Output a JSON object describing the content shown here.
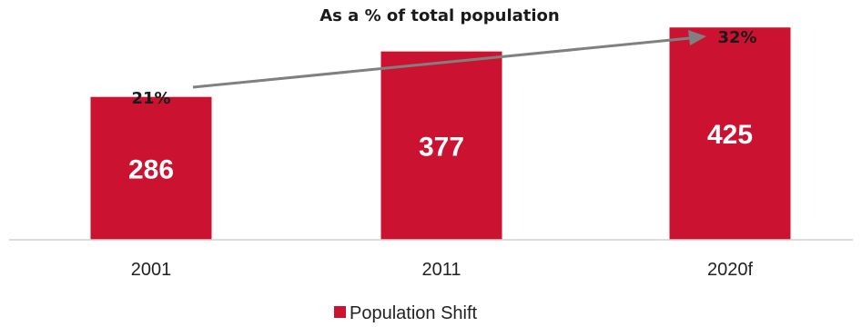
{
  "chart_data": {
    "type": "bar",
    "categories": [
      "2001",
      "2011",
      "2020f"
    ],
    "series": [
      {
        "name": "Population Shift",
        "values": [
          286,
          377,
          425
        ],
        "color": "#cc1231"
      }
    ],
    "ylim": [
      0,
      480
    ],
    "annotation": {
      "text": "As a % of total population",
      "start_label": "21%",
      "end_label": "32%",
      "arrow_color": "#808080"
    },
    "legend": {
      "placement": "bottom-center"
    },
    "grid": false
  }
}
